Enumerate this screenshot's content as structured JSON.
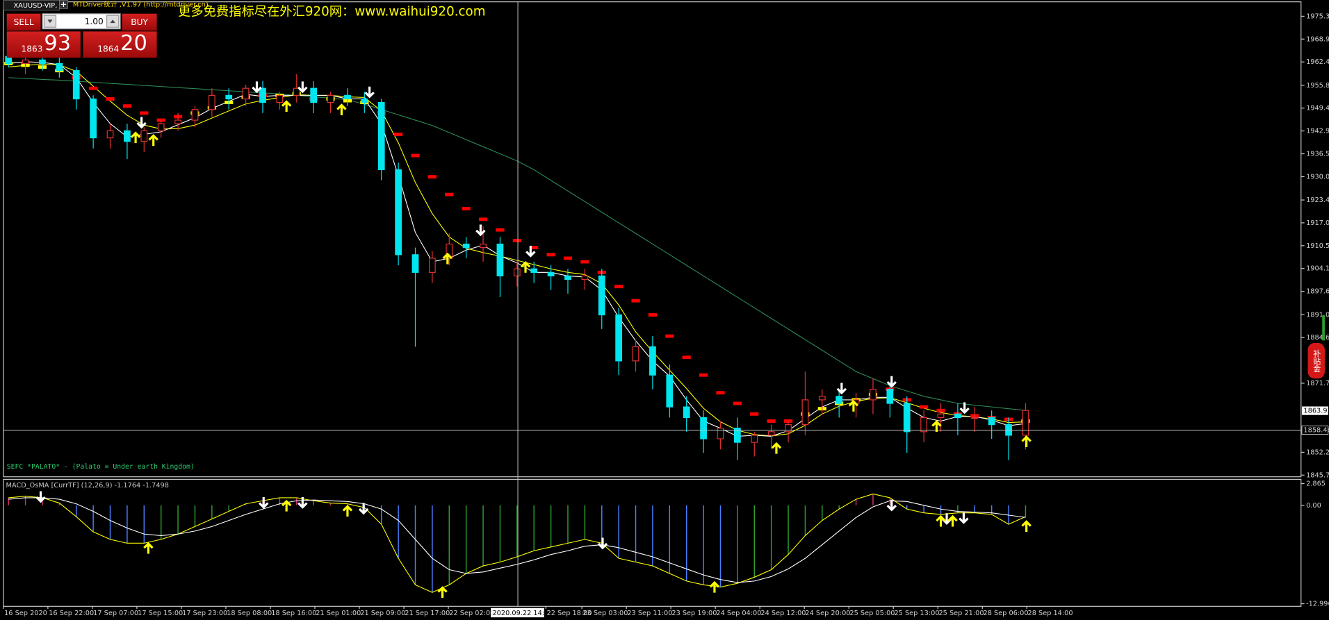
{
  "window": {
    "tab": "XAUUSD-VIP,",
    "driver": "MTDriver统计 ,V1.97 (http://mtdriver.cn)",
    "ad": "更多免费指标尽在外汇920网：www.waihui920.com",
    "side_badge": "补贴金"
  },
  "trade_panel": {
    "sell": "SELL",
    "buy": "BUY",
    "lots": "1.00",
    "bid_big": "1863",
    "bid_small": "93",
    "ask_big": "1864",
    "ask_small": "20"
  },
  "chart_data": [
    {
      "type": "candlestick",
      "indicator_label": "SEFC *PALATO* - (Palato = Under earth Kingdom)",
      "open": [
        1964,
        1962,
        1963,
        1962,
        1960,
        1952,
        1941,
        1943,
        1940,
        1943,
        1945,
        1946,
        1949,
        1953,
        1952,
        1955,
        1951,
        1953,
        1955,
        1951,
        1953,
        1952,
        1951,
        1932,
        1908,
        1903,
        1907,
        1911,
        1910,
        1911,
        1902,
        1904,
        1903,
        1902,
        1901,
        1902,
        1891,
        1878,
        1882,
        1874,
        1865,
        1862,
        1856,
        1859,
        1855,
        1857,
        1858,
        1860,
        1867,
        1868,
        1866,
        1867,
        1870,
        1866,
        1858,
        1862,
        1863,
        1862,
        1862,
        1860,
        1857
      ],
      "high": [
        1966,
        1965,
        1965,
        1964,
        1961,
        1953,
        1945,
        1945,
        1944,
        1946,
        1948,
        1950,
        1955,
        1955,
        1956,
        1957,
        1954,
        1959,
        1957,
        1954,
        1955,
        1954,
        1952,
        1934,
        1910,
        1909,
        1914,
        1913,
        1916,
        1913,
        1906,
        1906,
        1905,
        1904,
        1904,
        1904,
        1893,
        1884,
        1885,
        1877,
        1868,
        1864,
        1861,
        1862,
        1858,
        1860,
        1861,
        1875,
        1870,
        1870,
        1869,
        1873,
        1872,
        1868,
        1864,
        1866,
        1866,
        1865,
        1864,
        1862,
        1866
      ],
      "low": [
        1961,
        1959,
        1960,
        1958,
        1949,
        1938,
        1938,
        1935,
        1937,
        1941,
        1943,
        1944,
        1947,
        1949,
        1950,
        1948,
        1949,
        1951,
        1948,
        1948,
        1950,
        1948,
        1929,
        1905,
        1882,
        1900,
        1905,
        1907,
        1906,
        1896,
        1899,
        1900,
        1898,
        1897,
        1898,
        1887,
        1874,
        1875,
        1870,
        1862,
        1858,
        1852,
        1853,
        1850,
        1851,
        1853,
        1855,
        1857,
        1863,
        1862,
        1862,
        1863,
        1862,
        1852,
        1855,
        1858,
        1857,
        1858,
        1856,
        1850,
        1853
      ],
      "close": [
        1962,
        1963,
        1962,
        1960,
        1952,
        1941,
        1943,
        1940,
        1943,
        1945,
        1946,
        1949,
        1953,
        1952,
        1955,
        1951,
        1953,
        1955,
        1951,
        1953,
        1952,
        1951,
        1932,
        1908,
        1903,
        1907,
        1911,
        1910,
        1911,
        1902,
        1904,
        1903,
        1902,
        1901,
        1902,
        1891,
        1878,
        1882,
        1874,
        1865,
        1862,
        1856,
        1859,
        1855,
        1857,
        1858,
        1860,
        1867,
        1868,
        1866,
        1867,
        1870,
        1866,
        1858,
        1862,
        1863,
        1862,
        1862,
        1860,
        1857,
        1864
      ],
      "bear_color": "#00e5ee",
      "bull_color": "#e03030",
      "lines": [
        {
          "color": "#2e8b57",
          "values": [
            1958,
            1957.8,
            1957.5,
            1957.3,
            1957,
            1956.7,
            1956.4,
            1956.1,
            1955.8,
            1955.5,
            1955.2,
            1954.9,
            1954.6,
            1954.3,
            1954,
            1953.7,
            1953.4,
            1953,
            1952.6,
            1952.2,
            1951.8,
            1950.5,
            1949,
            1947.5,
            1946,
            1944.5,
            1942.5,
            1940.5,
            1938.5,
            1936.5,
            1934.5,
            1932,
            1929,
            1926,
            1923,
            1920,
            1917,
            1914,
            1911,
            1908,
            1905,
            1902,
            1899,
            1896,
            1893,
            1890,
            1887,
            1884,
            1881,
            1878,
            1875,
            1873,
            1871,
            1869.5,
            1868,
            1867,
            1866,
            1865.5,
            1865,
            1864.5,
            1864
          ]
        },
        {
          "color": "#ffff00",
          "values": [
            1961,
            1961.5,
            1961.8,
            1961.6,
            1959.8,
            1955.6,
            1951.4,
            1947.4,
            1944.6,
            1943.5,
            1943.6,
            1944.6,
            1946.6,
            1948.6,
            1950.6,
            1951.6,
            1952.4,
            1953.2,
            1953,
            1953,
            1952.6,
            1952.4,
            1948.6,
            1939.6,
            1928.4,
            1919.6,
            1913,
            1909.8,
            1908.6,
            1907.6,
            1906.4,
            1905.2,
            1904,
            1903,
            1902.4,
            1899.8,
            1893.8,
            1886.2,
            1880.6,
            1875.4,
            1870.2,
            1864.6,
            1860.8,
            1858.4,
            1857.2,
            1856.8,
            1857.4,
            1859.8,
            1863,
            1865.2,
            1866.6,
            1867.4,
            1867.6,
            1866.2,
            1864.6,
            1863.4,
            1862.6,
            1862.2,
            1861.6,
            1860.6,
            1860.8
          ]
        },
        {
          "color": "#ffffff",
          "values": [
            1962,
            1962.5,
            1962.3,
            1961.7,
            1958,
            1951,
            1945,
            1941.3,
            1942,
            1942.7,
            1944.7,
            1946.7,
            1949.3,
            1951.3,
            1953.3,
            1952.7,
            1953,
            1953,
            1953,
            1953,
            1952,
            1952,
            1945,
            1930.3,
            1914.3,
            1906,
            1907,
            1909.3,
            1910.7,
            1907.7,
            1905.7,
            1903,
            1903,
            1902,
            1901.7,
            1898,
            1890.3,
            1883.7,
            1878,
            1873.7,
            1867,
            1861,
            1859,
            1856.7,
            1857,
            1856.7,
            1858.3,
            1861.7,
            1865,
            1867,
            1867,
            1867.7,
            1867.7,
            1864.7,
            1862,
            1861,
            1862.3,
            1862.3,
            1861.3,
            1859.7,
            1860.3
          ]
        }
      ],
      "trend": [
        1962,
        1961.5,
        1961,
        1960,
        1958,
        1955,
        1952,
        1950,
        1948,
        1946,
        1947,
        1948,
        1949.5,
        1951,
        1952.5,
        1953,
        1953,
        1953.5,
        1952,
        1952,
        1951.5,
        1951,
        1948,
        1942,
        1936,
        1930,
        1925,
        1921,
        1918,
        1915,
        1912,
        1910,
        1908,
        1907,
        1906,
        1903,
        1899,
        1895,
        1891,
        1885,
        1879,
        1874,
        1869,
        1866,
        1863,
        1861,
        1861,
        1863,
        1864.5,
        1866,
        1867,
        1868.5,
        1870,
        1867,
        1865,
        1864,
        1863,
        1862.5,
        1862,
        1861.5,
        1861
      ],
      "trend_up_color": "#ffff00",
      "trend_down_color": "#ff0000",
      "ylim": [
        1845.27,
        1979.42
      ],
      "yticks": [
        1975.35,
        {
          "value": 1968.9,
          "label": "1968.90"
        },
        1962.45,
        1955.85,
        {
          "value": 1949.4,
          "label": "1949.40"
        },
        1942.95,
        {
          "value": 1936.5,
          "label": "1936.50"
        },
        1930.05,
        1923.45,
        {
          "value": 1917,
          "label": "1917.00"
        },
        1910.55,
        {
          "value": 1904.1,
          "label": "1904.10"
        },
        1897.65,
        1891.05,
        {
          "value": 1884.6,
          "label": "1884.60"
        },
        {
          "value": 1871.7,
          "label": "1871.70"
        },
        {
          "value": 1852.2,
          "label": "1852.20"
        },
        1845.75
      ],
      "bid": 1863.93,
      "crosshair": {
        "price": 1858.46,
        "time": "2020.09.22 14:00"
      },
      "time_labels": [
        "16 Sep 2020",
        "16 Sep 22:00",
        "17 Sep 07:00",
        "17 Sep 15:00",
        "17 Sep 23:00",
        "18 Sep 08:00",
        "18 Sep 16:00",
        "21 Sep 01:00",
        "21 Sep 09:00",
        "21 Sep 17:00",
        "22 Sep 02:00",
        null,
        "22 Sep 18:00",
        "23 Sep 03:00",
        "23 Sep 11:00",
        "23 Sep 19:00",
        "24 Sep 04:00",
        "24 Sep 12:00",
        "24 Sep 20:00",
        "25 Sep 05:00",
        "25 Sep 13:00",
        "25 Sep 21:00",
        "28 Sep 06:00",
        "28 Sep 14:00"
      ]
    },
    {
      "type": "macd",
      "label": "MACD_OsMA [CurrTF] (12,26,9) -1.1764 -1.7498",
      "macd": [
        1.0,
        1.2,
        1.0,
        0.3,
        -1.5,
        -3.5,
        -4.5,
        -5.0,
        -5.0,
        -4.5,
        -3.8,
        -2.8,
        -1.8,
        -0.8,
        0.2,
        0.6,
        1.0,
        1.0,
        0.6,
        0.3,
        0.2,
        -0.3,
        -2.5,
        -7.0,
        -10.5,
        -11.5,
        -10.5,
        -9.0,
        -8.0,
        -7.5,
        -6.8,
        -6.0,
        -5.5,
        -5.0,
        -4.5,
        -5.0,
        -7.0,
        -7.5,
        -8.0,
        -9.0,
        -10.0,
        -10.5,
        -10.8,
        -10.3,
        -9.5,
        -8.5,
        -6.5,
        -4.0,
        -2.0,
        -0.5,
        0.8,
        1.5,
        1.0,
        -0.5,
        -1.0,
        -1.2,
        -1.0,
        -1.0,
        -1.2,
        -2.5,
        -1.5
      ],
      "signal": [
        0.8,
        1.0,
        1.0,
        0.8,
        0.2,
        -0.8,
        -2.0,
        -3.0,
        -3.8,
        -4.0,
        -3.8,
        -3.4,
        -2.8,
        -2.0,
        -1.2,
        -0.5,
        0.2,
        0.6,
        0.7,
        0.6,
        0.5,
        0.2,
        -0.5,
        -2.0,
        -4.5,
        -7.0,
        -8.5,
        -9.0,
        -8.8,
        -8.3,
        -7.8,
        -7.2,
        -6.5,
        -6.0,
        -5.4,
        -5.2,
        -5.6,
        -6.2,
        -6.8,
        -7.6,
        -8.4,
        -9.2,
        -9.8,
        -10.2,
        -10.0,
        -9.4,
        -8.4,
        -7.0,
        -5.2,
        -3.4,
        -1.6,
        -0.2,
        0.6,
        0.5,
        0.0,
        -0.5,
        -0.8,
        -0.9,
        -1.0,
        -1.3,
        -1.6
      ],
      "macd_color": "#ffff00",
      "signal_color": "#ffffff",
      "positive_color": "#d0306a",
      "rising_color": "#2e9e2e",
      "falling_color": "#4a7fff",
      "ylim": [
        -13.337,
        3.432
      ],
      "yticks": [
        2.865,
        {
          "value": 0,
          "label": "0.00"
        },
        -12.9969
      ]
    }
  ]
}
